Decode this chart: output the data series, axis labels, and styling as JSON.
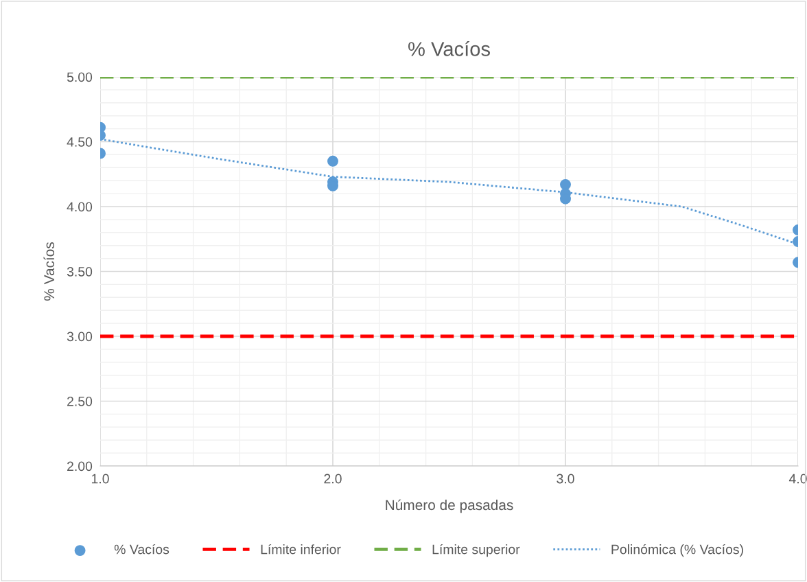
{
  "chart_data": {
    "type": "scatter",
    "title": "% Vacíos",
    "xlabel": "Número de pasadas",
    "ylabel": "% Vacíos",
    "series": [
      {
        "name": "% Vacíos",
        "color": "#5b9bd5",
        "marker": "circle",
        "x": [
          1,
          1,
          1,
          2,
          2,
          2,
          3,
          3,
          3,
          4,
          4,
          4
        ],
        "values": [
          4.61,
          4.55,
          4.41,
          4.35,
          4.19,
          4.16,
          4.17,
          4.1,
          4.06,
          3.82,
          3.73,
          3.57
        ]
      },
      {
        "name": "Límite inferior",
        "type": "line",
        "color": "#ff0000",
        "line_style": "dashed",
        "x": [
          1,
          4
        ],
        "values": [
          3.0,
          3.0
        ]
      },
      {
        "name": "Límite superior",
        "type": "line",
        "color": "#70ad47",
        "line_style": "dashed",
        "x": [
          1,
          4
        ],
        "values": [
          5.0,
          5.0
        ]
      },
      {
        "name": "Polinómica (% Vacíos)",
        "type": "line",
        "color": "#5b9bd5",
        "line_style": "dotted",
        "x": [
          1,
          1.5,
          2,
          2.5,
          3,
          3.5,
          3.75,
          4
        ],
        "values": [
          4.52,
          4.37,
          4.23,
          4.19,
          4.11,
          4.0,
          3.86,
          3.71
        ]
      }
    ],
    "xlim": [
      1,
      4
    ],
    "xticks": [
      {
        "value": 1,
        "label": "1.0"
      },
      {
        "value": 2,
        "label": "2.0"
      },
      {
        "value": 3,
        "label": "3.0"
      },
      {
        "value": 4,
        "label": "4.0"
      }
    ],
    "ylim": [
      2,
      5
    ],
    "yticks": [
      {
        "value": 2,
        "label": "2.00"
      },
      {
        "value": 2.5,
        "label": "2.50"
      },
      {
        "value": 3,
        "label": "3.00"
      },
      {
        "value": 3.5,
        "label": "3.50"
      },
      {
        "value": 4,
        "label": "4.00"
      },
      {
        "value": 4.5,
        "label": "4.50"
      },
      {
        "value": 5,
        "label": "5.00"
      }
    ],
    "grid": true,
    "legend": "bottom"
  }
}
